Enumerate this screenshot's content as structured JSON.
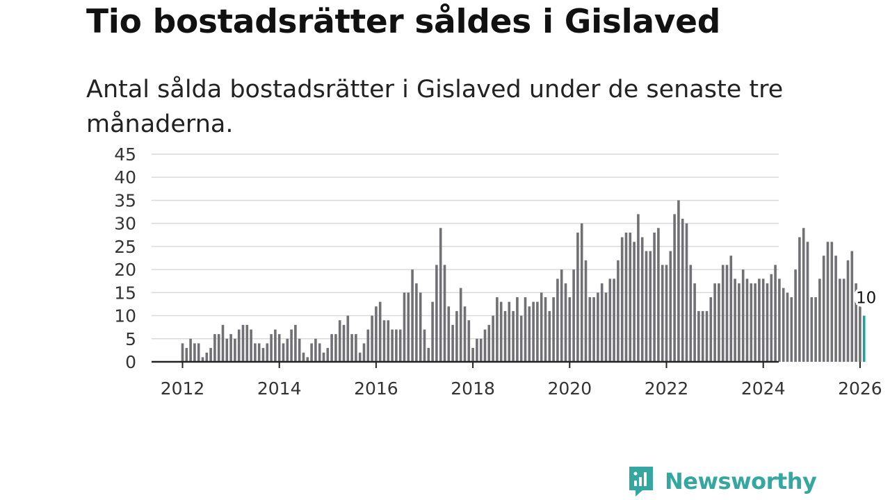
{
  "title": "Tio bostadsrätter såldes i Gislaved",
  "subtitle": "Antal sålda bostadsrätter i Gislaved under de senaste tre månaderna.",
  "brand": {
    "name": "Newsworthy",
    "color": "#35a7a0",
    "icon": "newsworthy-logo-icon"
  },
  "chart_data": {
    "type": "bar",
    "title": "Tio bostadsrätter såldes i Gislaved",
    "xlabel": "",
    "ylabel": "",
    "ylim": [
      0,
      45
    ],
    "y_ticks": [
      0,
      5,
      10,
      15,
      20,
      25,
      30,
      35,
      40,
      45
    ],
    "x_ticks": [
      "2012",
      "2014",
      "2016",
      "2018",
      "2020",
      "2022",
      "2024",
      "2026"
    ],
    "grid": true,
    "start": "2012-01",
    "bar_color": "#707075",
    "highlight_color": "#1aa6a0",
    "values": [
      4,
      3,
      5,
      4,
      4,
      1,
      2,
      3,
      6,
      6,
      8,
      5,
      6,
      5,
      7,
      8,
      8,
      7,
      4,
      4,
      3,
      4,
      6,
      7,
      6,
      4,
      5,
      7,
      8,
      5,
      2,
      1,
      4,
      5,
      4,
      2,
      3,
      6,
      6,
      9,
      8,
      10,
      6,
      6,
      2,
      4,
      7,
      10,
      12,
      13,
      9,
      9,
      7,
      7,
      7,
      15,
      15,
      20,
      17,
      15,
      7,
      3,
      13,
      21,
      29,
      21,
      12,
      8,
      11,
      16,
      12,
      9,
      3,
      5,
      5,
      7,
      8,
      10,
      14,
      13,
      11,
      13,
      11,
      14,
      10,
      14,
      12,
      13,
      13,
      15,
      14,
      11,
      14,
      18,
      20,
      17,
      14,
      20,
      28,
      30,
      22,
      14,
      14,
      15,
      17,
      15,
      18,
      18,
      22,
      27,
      28,
      28,
      26,
      32,
      27,
      24,
      24,
      28,
      29,
      21,
      21,
      24,
      32,
      35,
      31,
      30,
      21,
      17,
      11,
      11,
      11,
      14,
      17,
      17,
      21,
      21,
      23,
      18,
      17,
      20,
      18,
      17,
      17,
      18,
      18,
      17,
      19,
      21,
      18,
      16,
      15,
      14,
      20,
      27,
      29,
      26,
      14,
      14,
      18,
      23,
      26,
      26,
      23,
      18,
      18,
      22,
      24,
      17,
      12,
      10
    ],
    "last_label": "10"
  }
}
